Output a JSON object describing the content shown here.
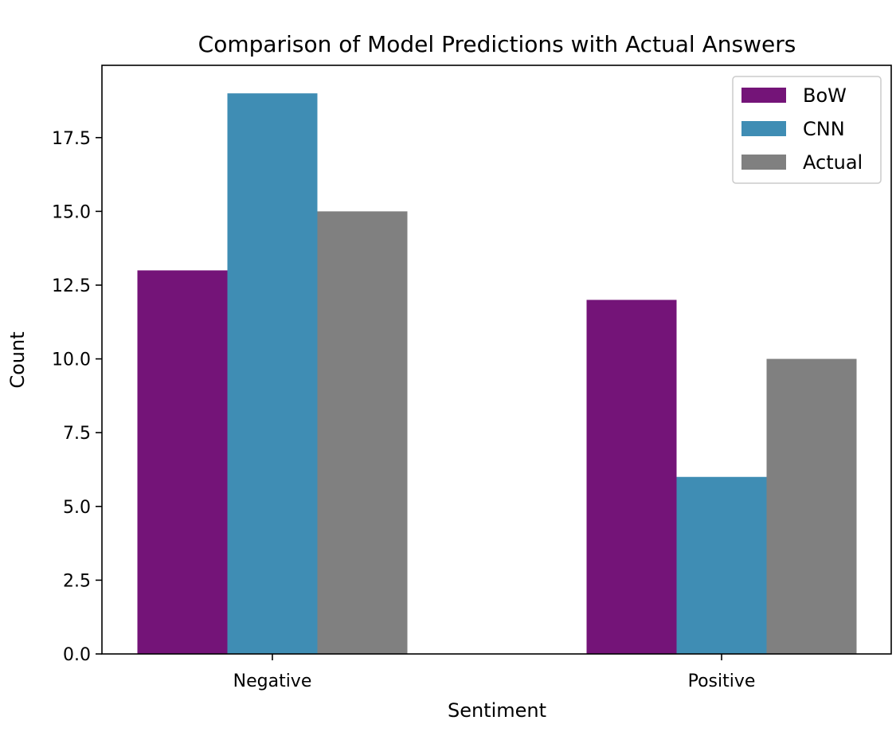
{
  "chart_data": {
    "type": "bar",
    "title": "Comparison of Model Predictions with Actual Answers",
    "xlabel": "Sentiment",
    "ylabel": "Count",
    "categories": [
      "Negative",
      "Positive"
    ],
    "series": [
      {
        "name": "BoW",
        "values": [
          13,
          12
        ],
        "color": "#741478"
      },
      {
        "name": "CNN",
        "values": [
          19,
          6
        ],
        "color": "#3f8db4"
      },
      {
        "name": "Actual",
        "values": [
          15,
          10
        ],
        "color": "#808080"
      }
    ],
    "ylim": [
      0,
      19.95
    ],
    "yticks": [
      0.0,
      2.5,
      5.0,
      7.5,
      10.0,
      12.5,
      15.0,
      17.5
    ],
    "ytick_labels": [
      "0.0",
      "2.5",
      "5.0",
      "7.5",
      "10.0",
      "12.5",
      "15.0",
      "17.5"
    ],
    "grid": false,
    "legend_position": "top-right"
  }
}
